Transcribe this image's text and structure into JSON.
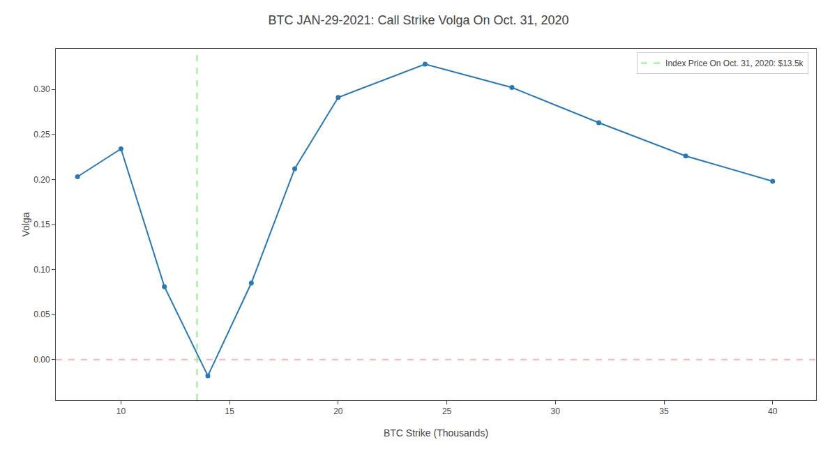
{
  "chart_data": {
    "type": "line",
    "title": "BTC JAN-29-2021: Call Strike Volga On Oct. 31, 2020",
    "xlabel": "BTC Strike (Thousands)",
    "ylabel": "Volga",
    "x": [
      8,
      10,
      12,
      14,
      16,
      18,
      20,
      24,
      28,
      32,
      36,
      40
    ],
    "values": [
      0.203,
      0.234,
      0.081,
      -0.018,
      0.085,
      0.212,
      0.291,
      0.328,
      0.302,
      0.263,
      0.226,
      0.198
    ],
    "color": "#2878b5",
    "marker": "circle",
    "vlines": [
      {
        "x": 13.5,
        "color": "#90ee90",
        "line_style": "dash",
        "name": "Index Price On Oct. 31, 2020: $13.5k"
      }
    ],
    "hlines": [
      {
        "y": 0,
        "color": "#ffb3ba",
        "line_style": "dash"
      }
    ],
    "legend": "upper right",
    "grid": false,
    "xlim": [
      7,
      42
    ],
    "ylim": [
      -0.045,
      0.345
    ],
    "xticks": [
      10,
      15,
      20,
      25,
      30,
      35,
      40
    ],
    "yticks": [
      {
        "value": 0,
        "label": "0.00"
      },
      0.05,
      {
        "value": 0.1,
        "label": "0.10"
      },
      0.15,
      {
        "value": 0.2,
        "label": "0.20"
      },
      0.25,
      {
        "value": 0.3,
        "label": "0.30"
      }
    ]
  }
}
